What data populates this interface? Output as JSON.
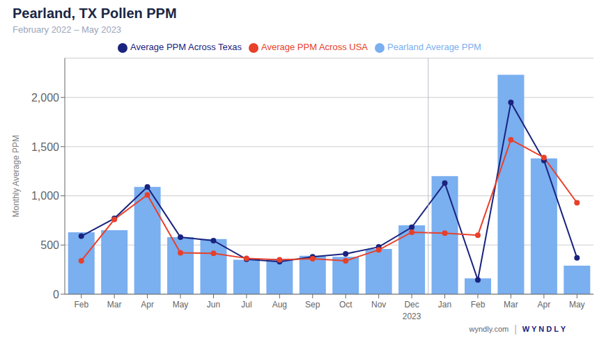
{
  "chart_data": {
    "type": "bar",
    "title": "Pearland, TX Pollen PPM",
    "subtitle": "February 2022 – May 2023",
    "ylabel": "Monthly Average PPM",
    "categories": [
      "Feb",
      "Mar",
      "Apr",
      "May",
      "Jun",
      "Jul",
      "Aug",
      "Sep",
      "Oct",
      "Nov",
      "Dec",
      "Jan",
      "Feb",
      "Mar",
      "Apr",
      "May"
    ],
    "series": [
      {
        "name": "Pearland Average PPM",
        "type": "bar",
        "color": "#7aaff0",
        "values": [
          630,
          650,
          1090,
          580,
          560,
          350,
          360,
          390,
          380,
          460,
          700,
          1200,
          160,
          2230,
          1380,
          290
        ]
      },
      {
        "name": "Average PPM Across Texas",
        "type": "line",
        "color": "#1a237e",
        "marker": "circle",
        "values": [
          590,
          770,
          1090,
          580,
          545,
          355,
          330,
          380,
          410,
          480,
          680,
          1130,
          145,
          1950,
          1360,
          370
        ]
      },
      {
        "name": "Average PPM Across USA",
        "type": "line",
        "color": "#e8402a",
        "marker": "circle",
        "values": [
          340,
          760,
          1010,
          420,
          415,
          365,
          350,
          360,
          340,
          450,
          630,
          620,
          600,
          1570,
          1390,
          930
        ]
      }
    ],
    "ylim": [
      0,
      2400
    ],
    "yticks": [
      0,
      500,
      {
        "value": 1000,
        "label": "1,000"
      },
      {
        "value": 1500,
        "label": "1,500"
      },
      {
        "value": 2000,
        "label": "2,000"
      }
    ],
    "grid": true,
    "legend": "top",
    "annotations": [
      {
        "text": "2023",
        "category": "Dec"
      },
      {
        "type": "vline",
        "after": "Dec",
        "color": "#bbbbcc"
      },
      {
        "text": "wyndly.com"
      },
      {
        "text": "|"
      },
      {
        "text": "W  Y N D L Y"
      }
    ]
  }
}
